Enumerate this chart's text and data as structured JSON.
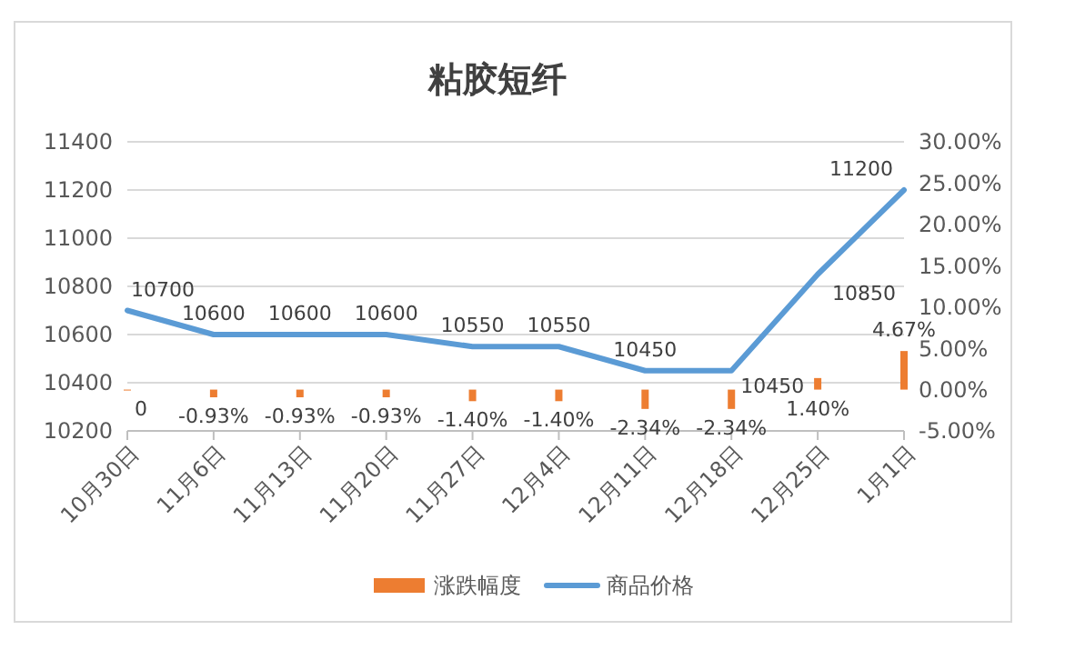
{
  "chart_data": {
    "type": "bar",
    "title": "粘胶短纤",
    "categories": [
      "10月30日",
      "11月6日",
      "11月13日",
      "11月20日",
      "11月27日",
      "12月4日",
      "12月11日",
      "12月18日",
      "12月25日",
      "1月1日"
    ],
    "series": [
      {
        "name": "涨跌幅度",
        "axis": "y2",
        "color": "#ed7d31",
        "values": [
          0,
          -0.93,
          -0.93,
          -0.93,
          -1.4,
          -1.4,
          -2.34,
          -2.34,
          1.4,
          4.67
        ],
        "value_labels": [
          "0",
          "-0.93%",
          "-0.93%",
          "-0.93%",
          "-1.40%",
          "-1.40%",
          "-2.34%",
          "-2.34%",
          "1.40%",
          "4.67%"
        ]
      },
      {
        "name": "商品价格",
        "type": "line",
        "color": "#5b9bd5",
        "values": [
          10700,
          10600,
          10600,
          10600,
          10550,
          10550,
          10450,
          10450,
          10850,
          11200
        ],
        "value_labels": [
          "10700",
          "10600",
          "10600",
          "10600",
          "10550",
          "10550",
          "10450",
          "10450",
          "10850",
          "11200"
        ]
      }
    ],
    "ylim": [
      10200,
      11400
    ],
    "yticks": [
      10200,
      10400,
      10600,
      10800,
      11000,
      11200,
      11400
    ],
    "y2lim": [
      -5,
      30
    ],
    "y2ticks": [
      {
        "value": -5,
        "label": "-5.00%"
      },
      {
        "value": 0,
        "label": "0.00%"
      },
      {
        "value": 5,
        "label": "5.00%"
      },
      {
        "value": 10,
        "label": "10.00%"
      },
      {
        "value": 15,
        "label": "15.00%"
      },
      {
        "value": 20,
        "label": "20.00%"
      },
      {
        "value": 25,
        "label": "25.00%"
      },
      {
        "value": 30,
        "label": "30.00%"
      }
    ],
    "grid": "y",
    "legend": "bottom",
    "marker": "none",
    "line_style": "solid"
  }
}
